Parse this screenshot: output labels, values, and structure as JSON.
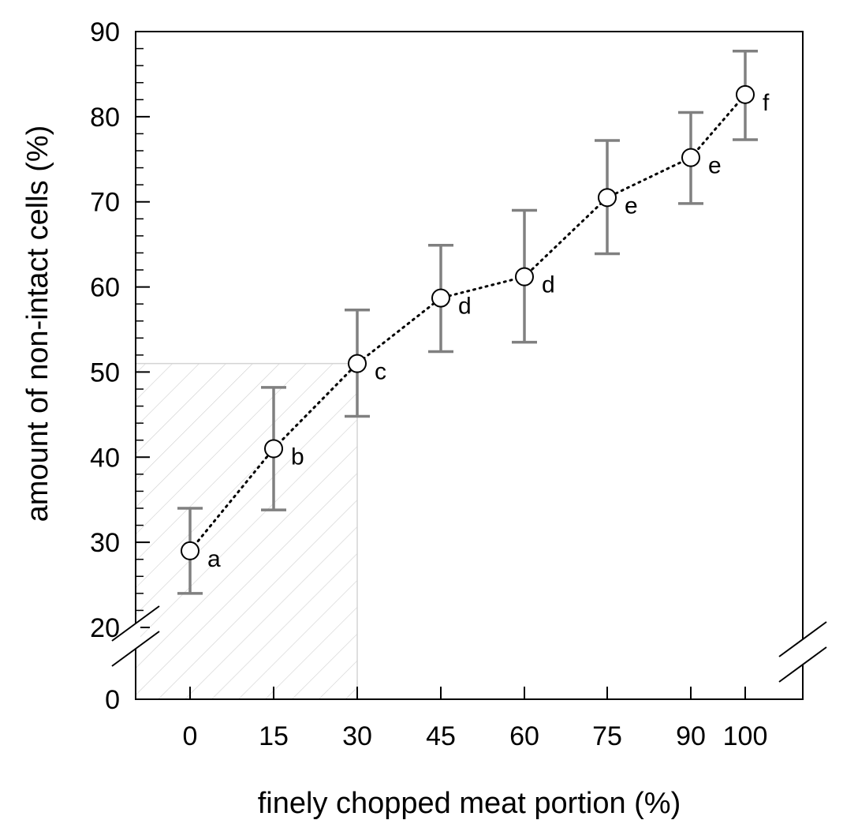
{
  "chart_data": {
    "type": "scatter",
    "title": "",
    "xlabel": "finely chopped meat portion (%)",
    "ylabel": "amount of non-intact cells (%)",
    "categories": [
      "0",
      "15",
      "30",
      "45",
      "60",
      "75",
      "90",
      "100"
    ],
    "x": [
      0,
      15,
      30,
      45,
      60,
      75,
      90,
      100
    ],
    "series": [
      {
        "name": "non-intact cells",
        "values": [
          29,
          41,
          51,
          58.7,
          61.2,
          70.5,
          75.2,
          82.6
        ],
        "error_low": [
          24,
          33.8,
          44.8,
          52.4,
          53.5,
          63.9,
          69.8,
          77.3
        ],
        "error_high": [
          34,
          48.2,
          57.3,
          64.9,
          69,
          77.2,
          80.5,
          87.7
        ],
        "significance_letters": [
          "a",
          "b",
          "c",
          "d",
          "d",
          "e",
          "e",
          "f"
        ],
        "line_style": "dotted",
        "marker": "open-circle"
      }
    ],
    "yticks": [
      "0",
      "20",
      "30",
      "40",
      "50",
      "60",
      "70",
      "80",
      "90"
    ],
    "ylim": [
      0,
      90
    ],
    "y_axis_break": "between 0 and 20",
    "highlight_region": {
      "x_from": 0,
      "x_to": 30,
      "y_from": 0,
      "y_to": 51,
      "pattern": "diagonal-hatch"
    },
    "grid": false,
    "legend": "none"
  }
}
